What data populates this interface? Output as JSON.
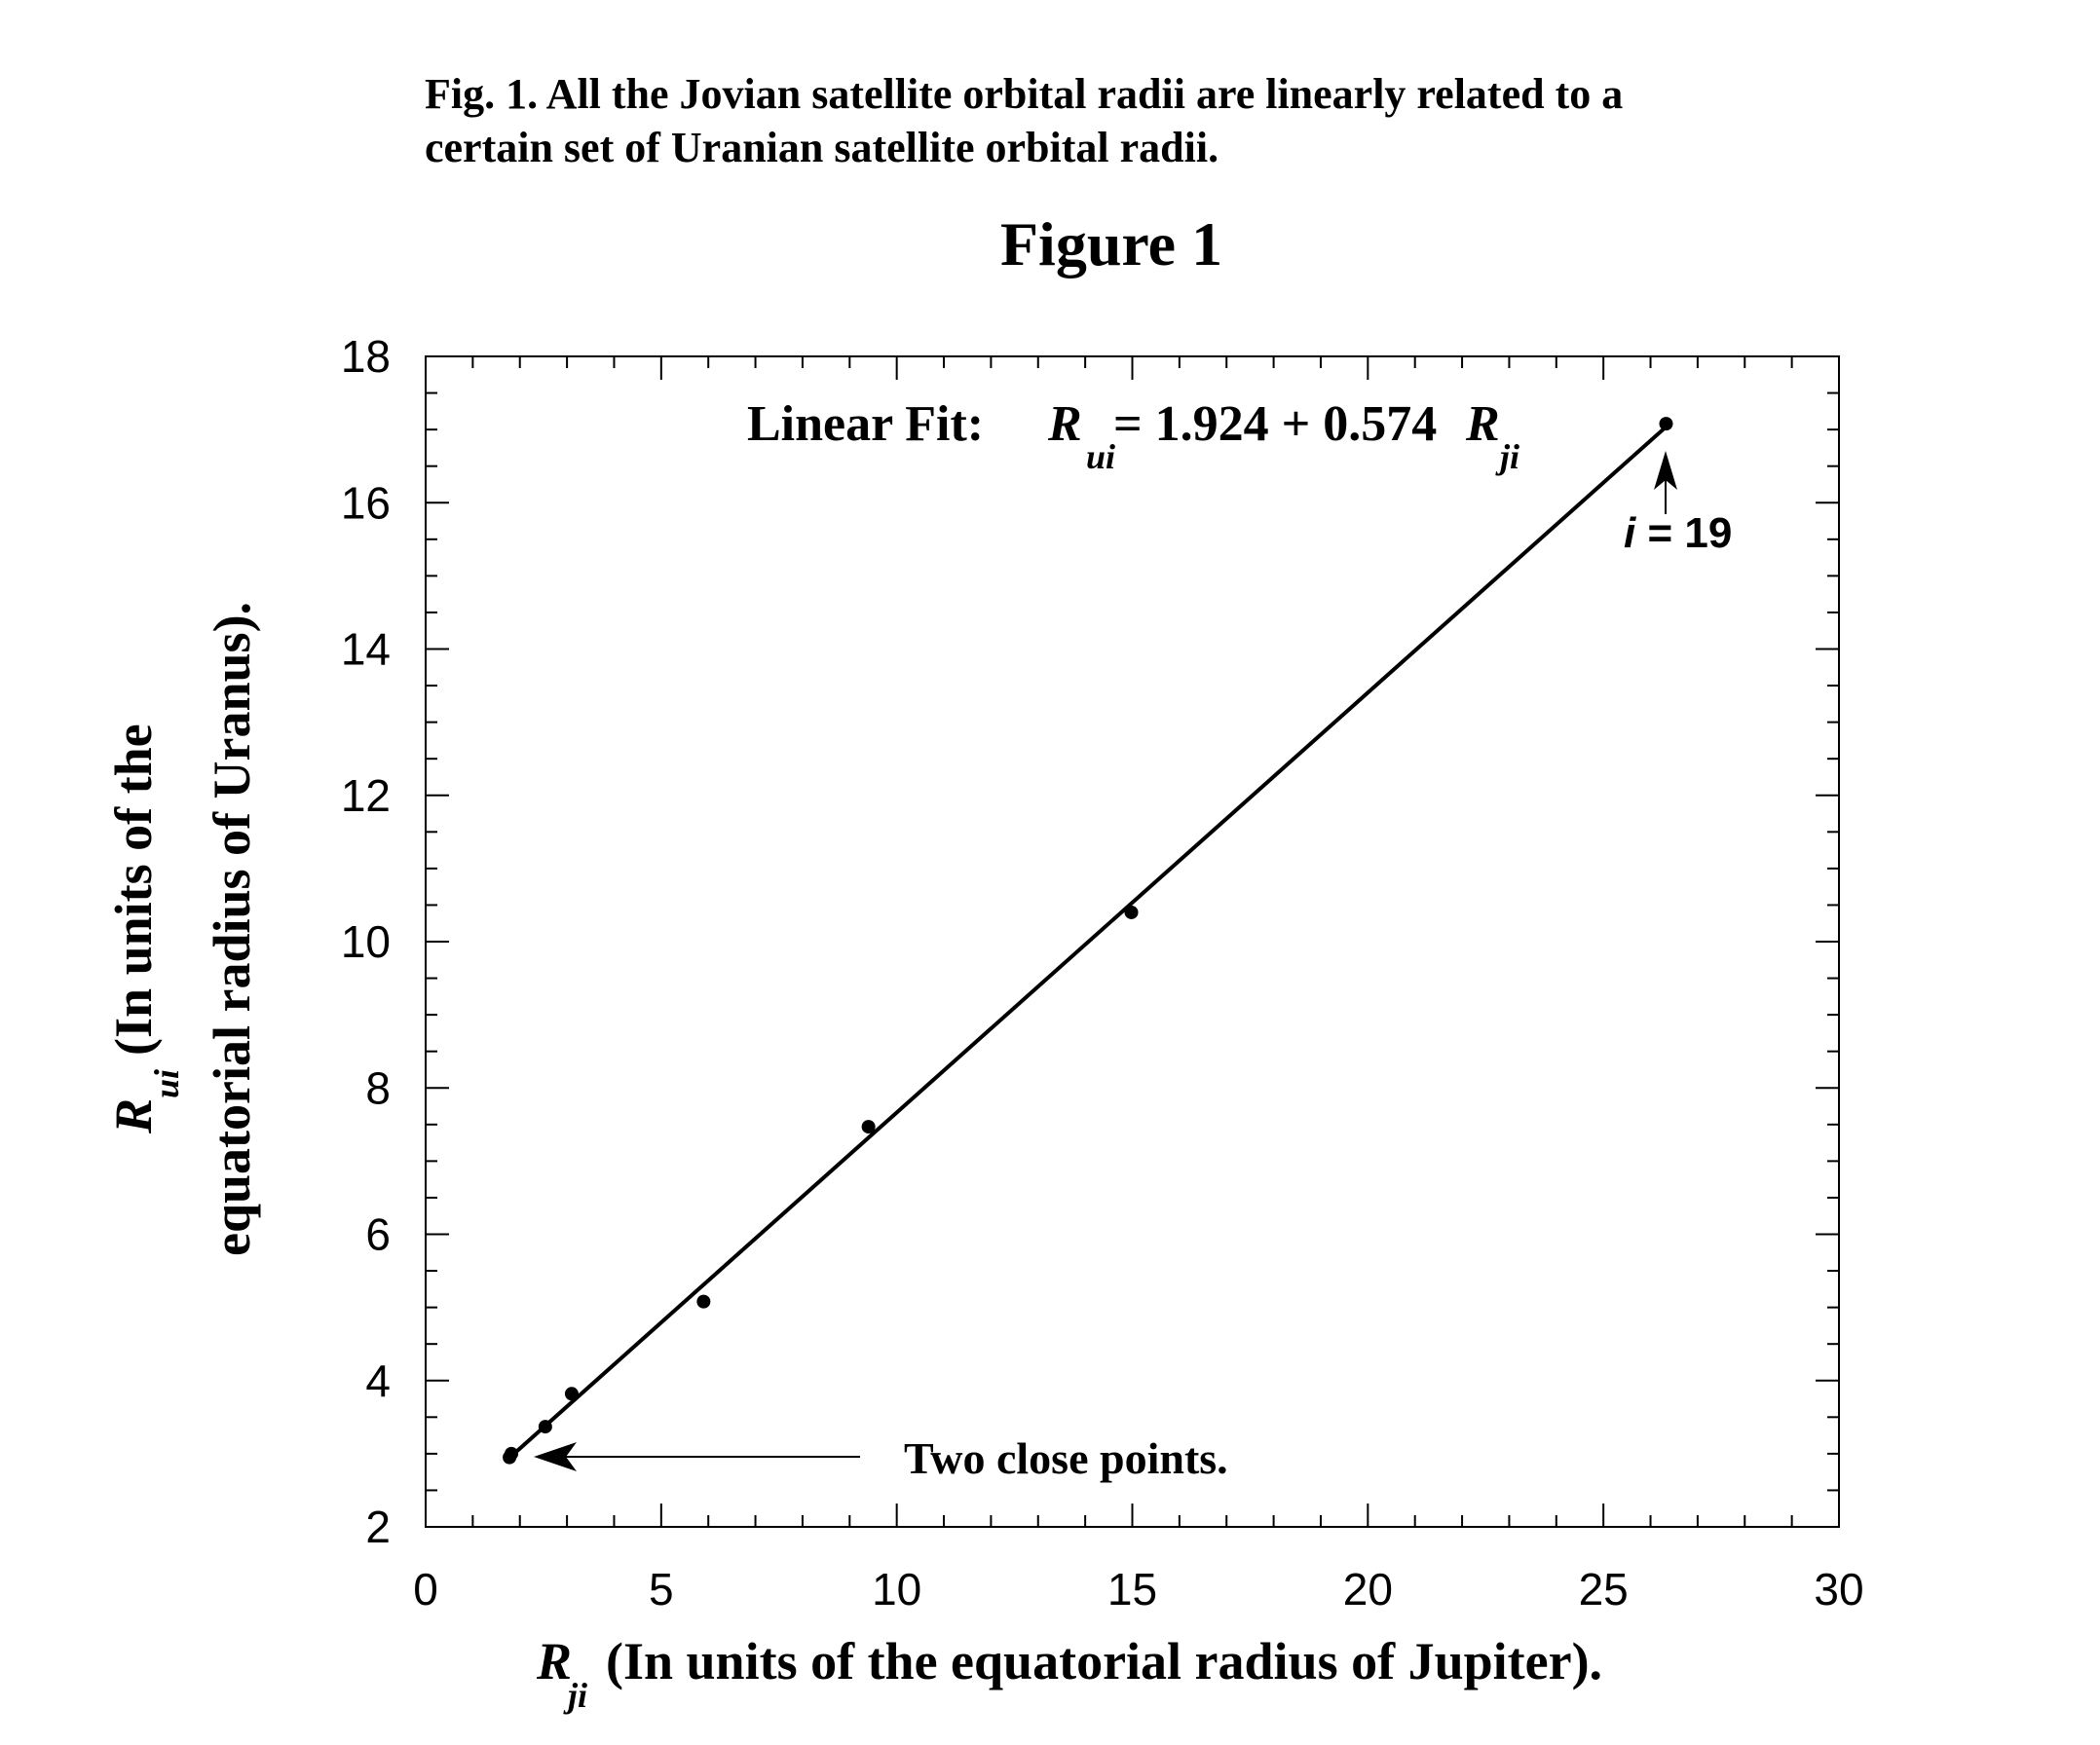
{
  "caption": {
    "line1": "Fig. 1. All the Jovian satellite orbital radii are linearly related to a",
    "line2": "certain set of Uranian satellite orbital radii."
  },
  "chart_data": {
    "type": "scatter",
    "title": "Figure 1",
    "xlabel": {
      "symbol": "R",
      "subscript": "ji",
      "text": "(In units of the equatorial radius of Jupiter)."
    },
    "ylabel": {
      "symbol": "R",
      "subscript": "ui",
      "line1": "(In units of the",
      "line2": "equatorial radius of Uranus)."
    },
    "xlim": [
      0,
      30
    ],
    "ylim": [
      2,
      18
    ],
    "x_ticks": [
      "0",
      "5",
      "10",
      "15",
      "20",
      "25",
      "30"
    ],
    "y_ticks": [
      "2",
      "4",
      "6",
      "8",
      "10",
      "12",
      "14",
      "16",
      "18"
    ],
    "grid": false,
    "points": [
      {
        "x": 1.78,
        "y": 2.95
      },
      {
        "x": 1.82,
        "y": 3.0
      },
      {
        "x": 2.54,
        "y": 3.37
      },
      {
        "x": 3.1,
        "y": 3.82
      },
      {
        "x": 5.9,
        "y": 5.08
      },
      {
        "x": 9.4,
        "y": 7.47
      },
      {
        "x": 14.98,
        "y": 10.4
      },
      {
        "x": 26.33,
        "y": 17.08
      }
    ],
    "fit": {
      "intercept": 1.924,
      "slope": 0.574,
      "label_prefix": "Linear Fit:",
      "label_lhs": "R",
      "label_lhs_sub": "ui",
      "label_mid": "= 1.924 + 0.574",
      "label_rhs": "R",
      "label_rhs_sub": "ji"
    },
    "annotations": {
      "close_points": "Two close points.",
      "last_point_i": "i",
      "last_point_rest": " = 19"
    }
  }
}
